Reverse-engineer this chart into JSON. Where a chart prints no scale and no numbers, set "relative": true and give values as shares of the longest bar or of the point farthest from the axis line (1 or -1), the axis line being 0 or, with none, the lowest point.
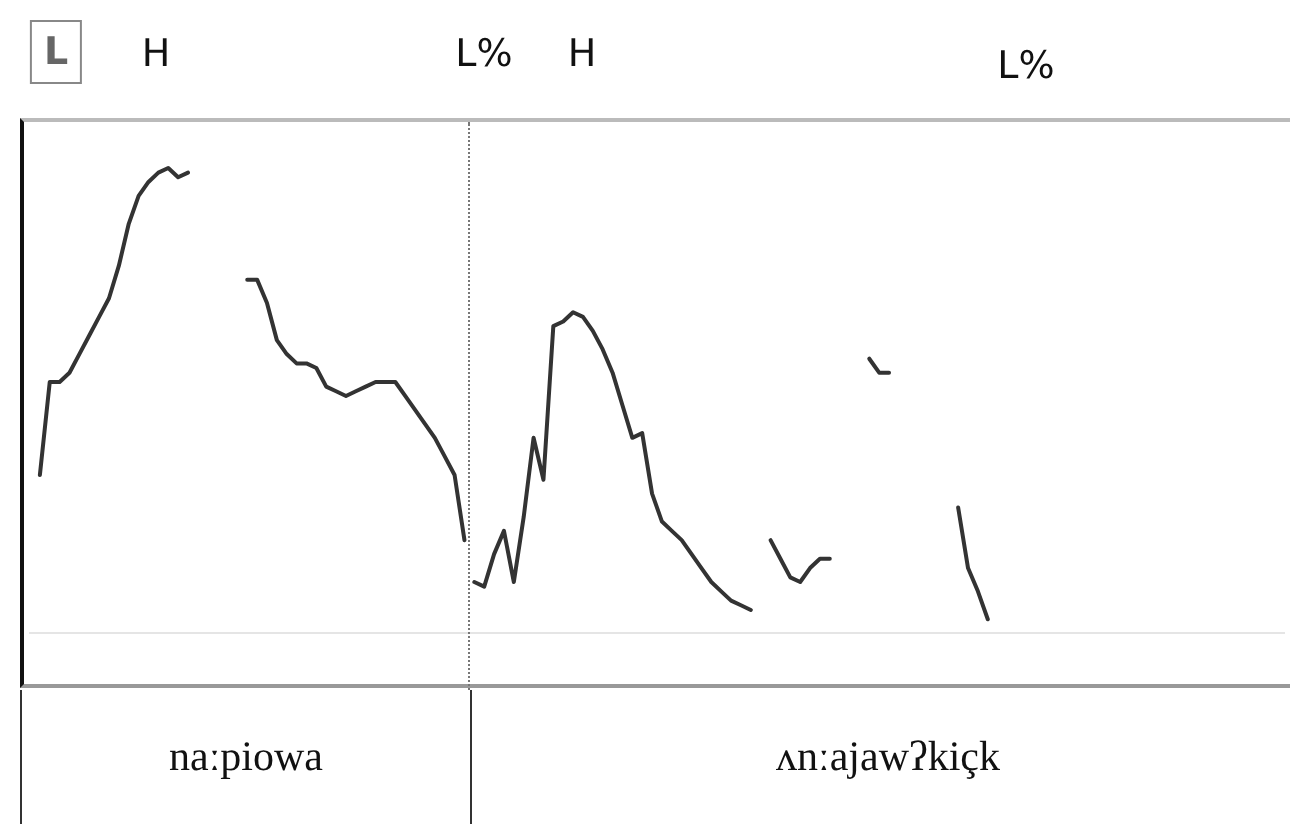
{
  "chart_data": {
    "type": "line",
    "relative": true,
    "grid": false,
    "legend": false,
    "marker": "none",
    "line_style": "solid",
    "categories": [
      null,
      null,
      null,
      null,
      null,
      null,
      null,
      null,
      null,
      null,
      null,
      null,
      null,
      null,
      null,
      null,
      null,
      null,
      null,
      null,
      null,
      null,
      null,
      null,
      null,
      null,
      null,
      null,
      null,
      null,
      null,
      null,
      null,
      null,
      null,
      null,
      null,
      null,
      null,
      null,
      null,
      null,
      null,
      null,
      null,
      null,
      null,
      null,
      null,
      null,
      null,
      null,
      null,
      null,
      null,
      null,
      null,
      null,
      null,
      null,
      null,
      null,
      null,
      null,
      null,
      null,
      null,
      null,
      null,
      null,
      null,
      null,
      null,
      null,
      null,
      null,
      null,
      null,
      null,
      null,
      null,
      null,
      null,
      null,
      null,
      null,
      null,
      null,
      null,
      null,
      null,
      null,
      null,
      null,
      null,
      null,
      null,
      null,
      null,
      null,
      null,
      null,
      null,
      null,
      null,
      null,
      null,
      null,
      null,
      null,
      null,
      null,
      null,
      null,
      null,
      null,
      null,
      null,
      null,
      null,
      null,
      null,
      null,
      null,
      null,
      null,
      null,
      null
    ],
    "series": [
      {
        "color": "#333333",
        "values": [
          null,
          0.34,
          0.54,
          0.54,
          0.56,
          0.6,
          0.64,
          0.68,
          0.72,
          0.79,
          0.88,
          0.94,
          0.97,
          0.99,
          1,
          0.98,
          0.99,
          null,
          null,
          null,
          null,
          null,
          null,
          null,
          null,
          null,
          null,
          null,
          null,
          null,
          null,
          null,
          null,
          null,
          null,
          null,
          null,
          null,
          null,
          null,
          null,
          null,
          null,
          null,
          null,
          null,
          null,
          null,
          null,
          null,
          null,
          null,
          null,
          null,
          null,
          null,
          null,
          null,
          null,
          null,
          null,
          null,
          null,
          null,
          null,
          null,
          null,
          null,
          null,
          null,
          null,
          null,
          null,
          null,
          null,
          null,
          null,
          null,
          null,
          null,
          null,
          null,
          null,
          null,
          null,
          null,
          null,
          null,
          null,
          null,
          null,
          null,
          null,
          null,
          null,
          null,
          null,
          null,
          null,
          null,
          null,
          null,
          null,
          null,
          null,
          null,
          null,
          null,
          null,
          null,
          null,
          null,
          null,
          null,
          null,
          null,
          null,
          null,
          null,
          null,
          null,
          null,
          null,
          null,
          null,
          null,
          null,
          null
        ]
      },
      {
        "color": "#333333",
        "values": [
          null,
          null,
          null,
          null,
          null,
          null,
          null,
          null,
          null,
          null,
          null,
          null,
          null,
          null,
          null,
          null,
          null,
          null,
          null,
          null,
          null,
          null,
          0.76,
          0.76,
          0.71,
          0.63,
          0.6,
          0.58,
          0.58,
          0.57,
          0.53,
          0.52,
          0.51,
          0.52,
          0.53,
          0.54,
          0.54,
          0.54,
          0.51,
          0.48,
          0.45,
          0.42,
          0.38,
          0.34,
          0.2,
          null,
          null,
          null,
          null,
          null,
          null,
          null,
          null,
          null,
          null,
          null,
          null,
          null,
          null,
          null,
          null,
          null,
          null,
          null,
          null,
          null,
          null,
          null,
          null,
          null,
          null,
          null,
          null,
          null,
          null,
          null,
          null,
          null,
          null,
          null,
          null,
          null,
          null,
          null,
          null,
          null,
          null,
          null,
          null,
          null,
          null,
          null,
          null,
          null,
          null,
          null,
          null,
          null,
          null,
          null,
          null,
          null,
          null,
          null,
          null,
          null,
          null,
          null,
          null,
          null,
          null,
          null,
          null,
          null,
          null,
          null,
          null,
          null,
          null,
          null,
          null,
          null,
          null,
          null,
          null,
          null,
          null,
          null
        ]
      },
      {
        "color": "#333333",
        "values": [
          null,
          null,
          null,
          null,
          null,
          null,
          null,
          null,
          null,
          null,
          null,
          null,
          null,
          null,
          null,
          null,
          null,
          null,
          null,
          null,
          null,
          null,
          null,
          null,
          null,
          null,
          null,
          null,
          null,
          null,
          null,
          null,
          null,
          null,
          null,
          null,
          null,
          null,
          null,
          null,
          null,
          null,
          null,
          null,
          null,
          0.11,
          0.1,
          0.17,
          0.22,
          0.11,
          0.25,
          0.42,
          0.33,
          0.66,
          0.67,
          0.69,
          0.68,
          0.65,
          0.61,
          0.56,
          0.49,
          0.42,
          0.43,
          0.3,
          0.24,
          0.22,
          0.2,
          0.17,
          0.14,
          0.11,
          0.09,
          0.07,
          0.06,
          0.05,
          null,
          null,
          null,
          null,
          null,
          null,
          null,
          null,
          null,
          null,
          null,
          null,
          null,
          null,
          null,
          null,
          null,
          null,
          null,
          null,
          null,
          null,
          null,
          null,
          null,
          null,
          null,
          null,
          null,
          null,
          null,
          null,
          null,
          null,
          null,
          null,
          null,
          null,
          null,
          null,
          null,
          null,
          null,
          null,
          null,
          null,
          null,
          null,
          null,
          null,
          null,
          null,
          null,
          null
        ]
      },
      {
        "color": "#333333",
        "values": [
          null,
          null,
          null,
          null,
          null,
          null,
          null,
          null,
          null,
          null,
          null,
          null,
          null,
          null,
          null,
          null,
          null,
          null,
          null,
          null,
          null,
          null,
          null,
          null,
          null,
          null,
          null,
          null,
          null,
          null,
          null,
          null,
          null,
          null,
          null,
          null,
          null,
          null,
          null,
          null,
          null,
          null,
          null,
          null,
          null,
          null,
          null,
          null,
          null,
          null,
          null,
          null,
          null,
          null,
          null,
          null,
          null,
          null,
          null,
          null,
          null,
          null,
          null,
          null,
          null,
          null,
          null,
          null,
          null,
          null,
          null,
          null,
          null,
          null,
          null,
          0.2,
          0.16,
          0.12,
          0.11,
          0.14,
          0.16,
          0.16,
          null,
          null,
          null,
          null,
          null,
          null,
          null,
          null,
          null,
          null,
          null,
          null,
          null,
          null,
          null,
          null,
          null,
          null,
          null,
          null,
          null,
          null,
          null,
          null,
          null,
          null,
          null,
          null,
          null,
          null,
          null,
          null,
          null,
          null,
          null,
          null,
          null,
          null,
          null,
          null,
          null,
          null,
          null,
          null,
          null,
          null
        ]
      },
      {
        "color": "#333333",
        "values": [
          null,
          null,
          null,
          null,
          null,
          null,
          null,
          null,
          null,
          null,
          null,
          null,
          null,
          null,
          null,
          null,
          null,
          null,
          null,
          null,
          null,
          null,
          null,
          null,
          null,
          null,
          null,
          null,
          null,
          null,
          null,
          null,
          null,
          null,
          null,
          null,
          null,
          null,
          null,
          null,
          null,
          null,
          null,
          null,
          null,
          null,
          null,
          null,
          null,
          null,
          null,
          null,
          null,
          null,
          null,
          null,
          null,
          null,
          null,
          null,
          null,
          null,
          null,
          null,
          null,
          null,
          null,
          null,
          null,
          null,
          null,
          null,
          null,
          null,
          null,
          null,
          null,
          null,
          null,
          null,
          null,
          null,
          null,
          null,
          null,
          0.59,
          0.56,
          0.56,
          null,
          null,
          null,
          null,
          null,
          null,
          null,
          null,
          null,
          null,
          null,
          null,
          null,
          null,
          null,
          null,
          null,
          null,
          null,
          null,
          null,
          null,
          null,
          null,
          null,
          null,
          null,
          null,
          null,
          null,
          null,
          null,
          null,
          null,
          null,
          null,
          null,
          null,
          null,
          null
        ]
      },
      {
        "color": "#333333",
        "values": [
          null,
          null,
          null,
          null,
          null,
          null,
          null,
          null,
          null,
          null,
          null,
          null,
          null,
          null,
          null,
          null,
          null,
          null,
          null,
          null,
          null,
          null,
          null,
          null,
          null,
          null,
          null,
          null,
          null,
          null,
          null,
          null,
          null,
          null,
          null,
          null,
          null,
          null,
          null,
          null,
          null,
          null,
          null,
          null,
          null,
          null,
          null,
          null,
          null,
          null,
          null,
          null,
          null,
          null,
          null,
          null,
          null,
          null,
          null,
          null,
          null,
          null,
          null,
          null,
          null,
          null,
          null,
          null,
          null,
          null,
          null,
          null,
          null,
          null,
          null,
          null,
          null,
          null,
          null,
          null,
          null,
          null,
          null,
          null,
          null,
          null,
          null,
          null,
          null,
          null,
          null,
          null,
          null,
          null,
          0.27,
          0.14,
          0.09,
          0.03,
          null,
          null,
          null,
          null,
          null,
          null,
          null,
          null,
          null,
          null,
          null,
          null,
          null,
          null,
          null,
          null,
          null,
          null,
          null,
          null,
          null,
          null,
          null,
          null,
          null,
          null,
          null,
          null,
          null,
          null
        ]
      }
    ],
    "annotations": [
      "L",
      "H",
      "L%",
      "H",
      "L%",
      "naːpiowa",
      "ʌnːajawʔkiçk"
    ]
  }
}
